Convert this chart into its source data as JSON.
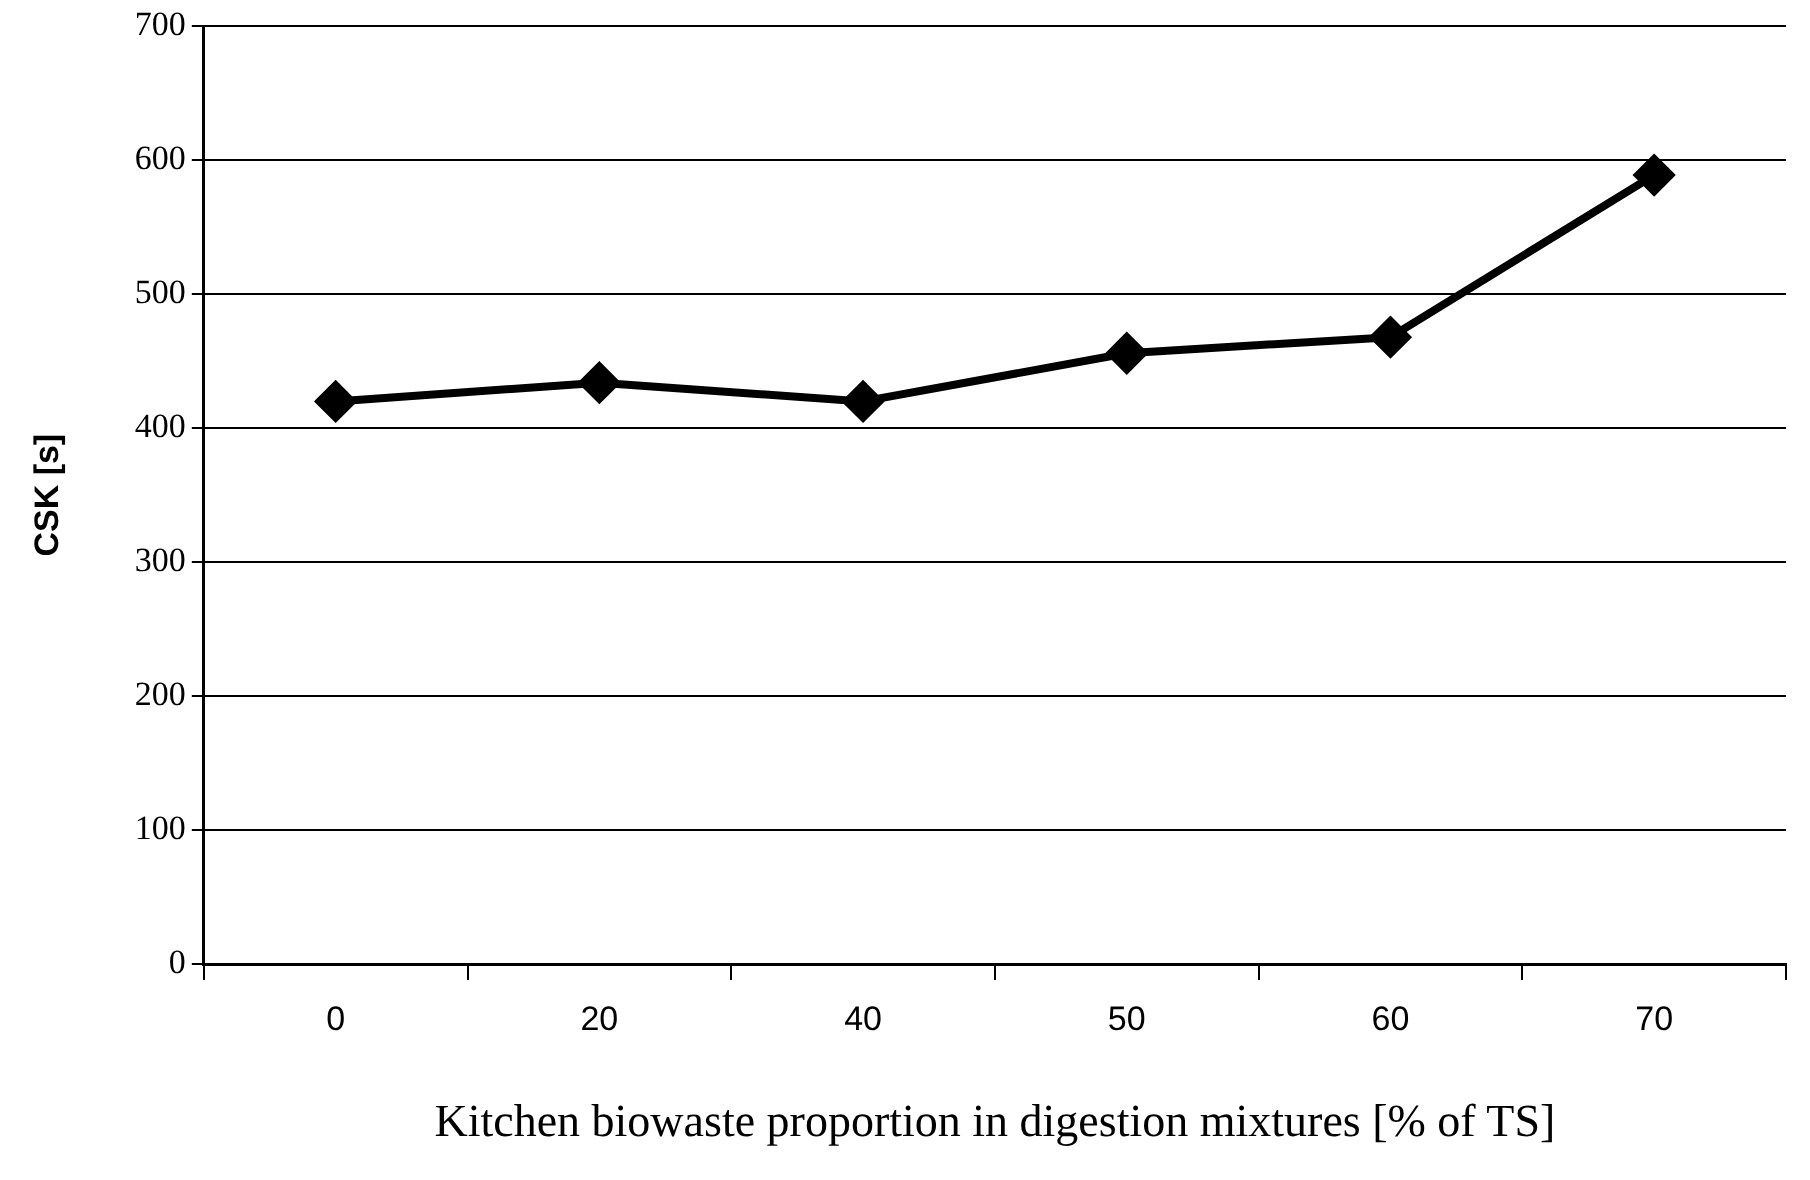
{
  "chart_data": {
    "type": "line",
    "xlabel": "Kitchen biowaste proportion in digestion mixtures [% of TS]",
    "ylabel": "CSK [s]",
    "categories": [
      "0",
      "20",
      "40",
      "50",
      "60",
      "70"
    ],
    "series": [
      {
        "color": "#000000",
        "values": [
          420,
          434,
          420,
          456,
          468,
          589
        ]
      }
    ],
    "ylim": [
      0,
      700
    ],
    "yticks": [
      0,
      100,
      200,
      300,
      400,
      500,
      600,
      700
    ],
    "grid": "y",
    "legend": false,
    "marker": "diamond",
    "line_style": "solid"
  }
}
